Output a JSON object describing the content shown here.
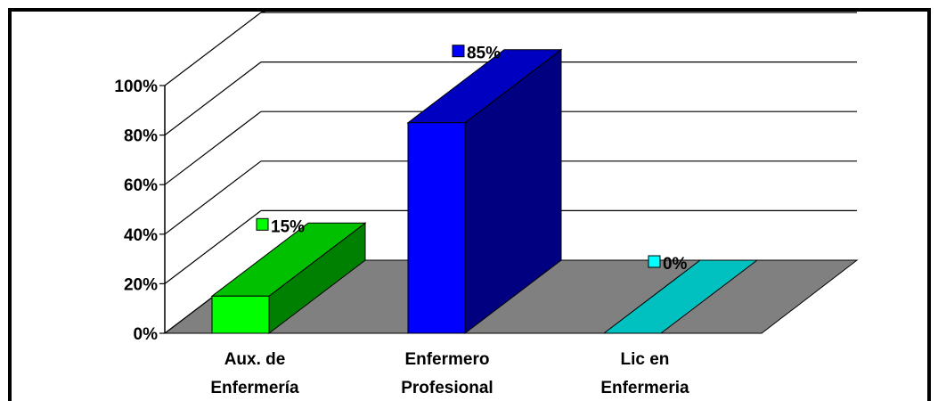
{
  "chart_data": {
    "type": "bar",
    "categories": [
      [
        "Aux. de",
        "Enfermería"
      ],
      [
        "Enfermero",
        "Profesional"
      ],
      [
        "Lic en",
        "Enfermeria"
      ]
    ],
    "values": [
      15,
      85,
      0
    ],
    "data_labels": [
      "15%",
      "85%",
      "0%"
    ],
    "y_ticks": [
      "0%",
      "20%",
      "40%",
      "60%",
      "80%",
      "100%"
    ],
    "ylim": [
      0,
      100
    ],
    "grid": true,
    "legend": "none",
    "three_d": true,
    "colors": {
      "bars": [
        {
          "front": "#00ff00",
          "side": "#008000",
          "top": "#00c000"
        },
        {
          "front": "#0000ff",
          "side": "#000080",
          "top": "#0000c0"
        },
        {
          "front": "#00ffff",
          "side": "#008080",
          "top": "#00c0c0"
        }
      ],
      "floor": "#808080",
      "gridline": "#000000",
      "border": "#000000"
    }
  }
}
